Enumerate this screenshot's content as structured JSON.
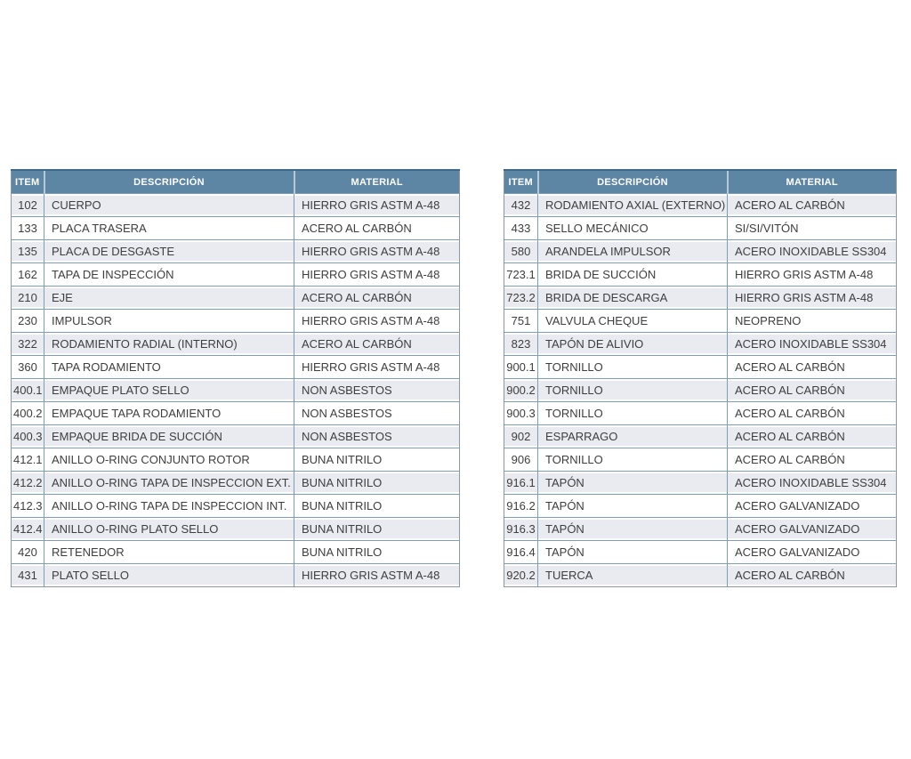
{
  "page": {
    "background": "#ffffff"
  },
  "colors": {
    "header_bg": "#5d86a5",
    "header_text": "#ffffff",
    "header_top_border": "#3f6988",
    "header_divider": "#b7c8d6",
    "grid_line": "#7f9db4",
    "outer_border": "#8e979e",
    "row_alt_bg": "#e9ebf1",
    "row_bg": "#ffffff",
    "cell_text": "#3e3e3e"
  },
  "tables": [
    {
      "id": "parts-table-left",
      "columns": {
        "item": "ITEM",
        "descripcion": "DESCRIPCIÓN",
        "material": "MATERIAL"
      },
      "rows": [
        {
          "item": "102",
          "descripcion": "CUERPO",
          "material": "HIERRO GRIS ASTM A-48"
        },
        {
          "item": "133",
          "descripcion": "PLACA TRASERA",
          "material": "ACERO AL CARBÓN"
        },
        {
          "item": "135",
          "descripcion": "PLACA DE DESGASTE",
          "material": "HIERRO GRIS ASTM A-48"
        },
        {
          "item": "162",
          "descripcion": "TAPA DE INSPECCIÓN",
          "material": "HIERRO GRIS ASTM A-48"
        },
        {
          "item": "210",
          "descripcion": "EJE",
          "material": "ACERO AL CARBÓN"
        },
        {
          "item": "230",
          "descripcion": "IMPULSOR",
          "material": "HIERRO GRIS ASTM A-48"
        },
        {
          "item": "322",
          "descripcion": "RODAMIENTO RADIAL (INTERNO)",
          "material": "ACERO AL CARBÓN"
        },
        {
          "item": "360",
          "descripcion": "TAPA RODAMIENTO",
          "material": "HIERRO GRIS ASTM A-48"
        },
        {
          "item": "400.1",
          "descripcion": "EMPAQUE PLATO SELLO",
          "material": "NON ASBESTOS"
        },
        {
          "item": "400.2",
          "descripcion": "EMPAQUE TAPA RODAMIENTO",
          "material": "NON ASBESTOS"
        },
        {
          "item": "400.3",
          "descripcion": "EMPAQUE BRIDA DE SUCCIÓN",
          "material": "NON ASBESTOS"
        },
        {
          "item": "412.1",
          "descripcion": "ANILLO O-RING CONJUNTO ROTOR",
          "material": "BUNA NITRILO"
        },
        {
          "item": "412.2",
          "descripcion": "ANILLO O-RING TAPA DE INSPECCION EXT.",
          "material": "BUNA NITRILO"
        },
        {
          "item": "412.3",
          "descripcion": "ANILLO O-RING TAPA DE INSPECCION INT.",
          "material": "BUNA NITRILO"
        },
        {
          "item": "412.4",
          "descripcion": "ANILLO O-RING PLATO SELLO",
          "material": "BUNA NITRILO"
        },
        {
          "item": "420",
          "descripcion": "RETENEDOR",
          "material": "BUNA NITRILO"
        },
        {
          "item": "431",
          "descripcion": "PLATO SELLO",
          "material": "HIERRO GRIS ASTM A-48"
        }
      ]
    },
    {
      "id": "parts-table-right",
      "columns": {
        "item": "ITEM",
        "descripcion": "DESCRIPCIÓN",
        "material": "MATERIAL"
      },
      "rows": [
        {
          "item": "432",
          "descripcion": "RODAMIENTO AXIAL (EXTERNO)",
          "material": "ACERO AL CARBÓN"
        },
        {
          "item": "433",
          "descripcion": "SELLO MECÁNICO",
          "material": "SI/SI/VITÓN"
        },
        {
          "item": "580",
          "descripcion": "ARANDELA IMPULSOR",
          "material": "ACERO INOXIDABLE SS304"
        },
        {
          "item": "723.1",
          "descripcion": "BRIDA DE SUCCIÓN",
          "material": "HIERRO GRIS ASTM A-48"
        },
        {
          "item": "723.2",
          "descripcion": "BRIDA DE DESCARGA",
          "material": "HIERRO GRIS ASTM A-48"
        },
        {
          "item": "751",
          "descripcion": "VALVULA CHEQUE",
          "material": "NEOPRENO"
        },
        {
          "item": "823",
          "descripcion": "TAPÓN DE ALIVIO",
          "material": "ACERO INOXIDABLE SS304"
        },
        {
          "item": "900.1",
          "descripcion": "TORNILLO",
          "material": "ACERO AL CARBÓN"
        },
        {
          "item": "900.2",
          "descripcion": "TORNILLO",
          "material": "ACERO AL CARBÓN"
        },
        {
          "item": "900.3",
          "descripcion": "TORNILLO",
          "material": "ACERO AL CARBÓN"
        },
        {
          "item": "902",
          "descripcion": "ESPARRAGO",
          "material": "ACERO AL CARBÓN"
        },
        {
          "item": "906",
          "descripcion": "TORNILLO",
          "material": "ACERO AL CARBÓN"
        },
        {
          "item": "916.1",
          "descripcion": "TAPÓN",
          "material": "ACERO INOXIDABLE SS304"
        },
        {
          "item": "916.2",
          "descripcion": "TAPÓN",
          "material": "ACERO GALVANIZADO"
        },
        {
          "item": "916.3",
          "descripcion": "TAPÓN",
          "material": "ACERO GALVANIZADO"
        },
        {
          "item": "916.4",
          "descripcion": "TAPÓN",
          "material": "ACERO GALVANIZADO"
        },
        {
          "item": "920.2",
          "descripcion": "TUERCA",
          "material": "ACERO AL CARBÓN"
        }
      ]
    }
  ]
}
